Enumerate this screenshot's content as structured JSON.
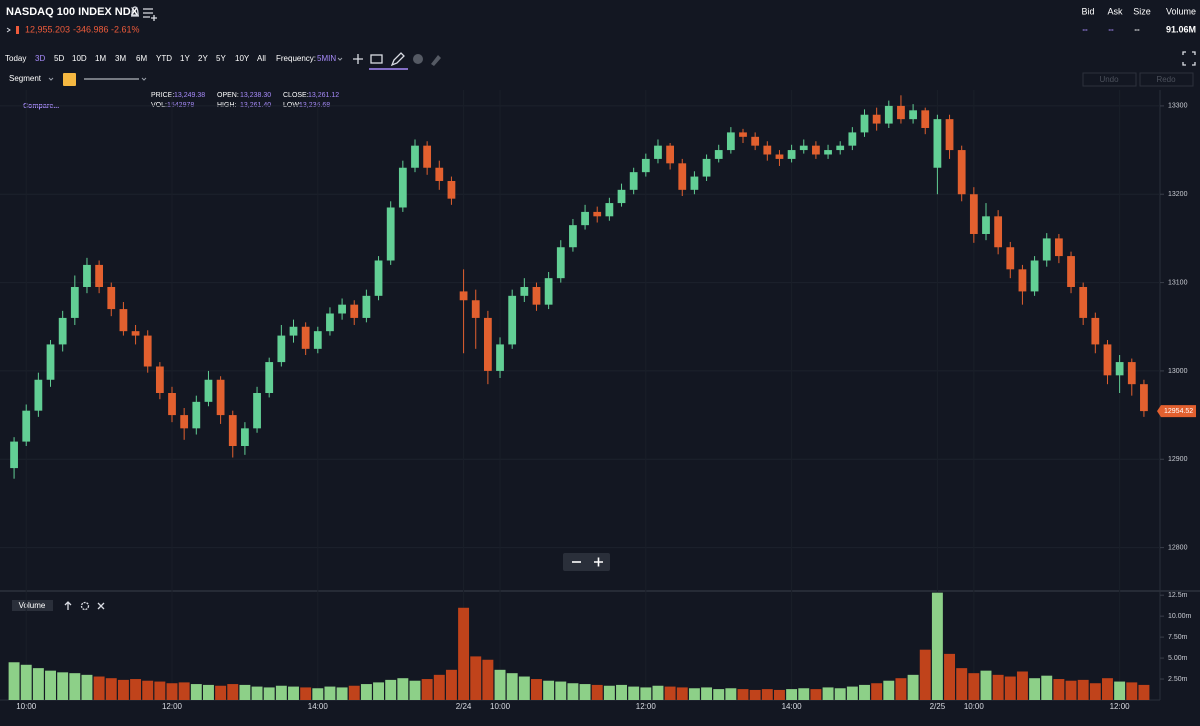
{
  "header": {
    "title": "NASDAQ 100 INDEX NDX",
    "price": "12,955.203",
    "change": "-346.986",
    "change_pct": "-2.61%"
  },
  "quote": {
    "labels": [
      "Bid",
      "Ask",
      "Size",
      "Volume"
    ],
    "values": [
      "--",
      "--",
      "--",
      "91.06M"
    ]
  },
  "toolbar": {
    "ranges": [
      "Today",
      "3D",
      "5D",
      "10D",
      "1M",
      "3M",
      "6M",
      "YTD",
      "1Y",
      "2Y",
      "5Y",
      "10Y",
      "All"
    ],
    "frequency_label": "Frequency:",
    "frequency": "5MIN",
    "segment": "Segment",
    "undo": "Undo",
    "redo": "Redo",
    "compare": "Compare..."
  },
  "info": {
    "price_label": "PRICE:",
    "price": "13,249.38",
    "open_label": "OPEN:",
    "open": "13,238.30",
    "close_label": "CLOSE:",
    "close": "13,261.12",
    "vol_label": "VOL:",
    "vol": 1542978,
    "high_label": "HIGH:",
    "high": "13,261.40",
    "low_label": "LOW:",
    "low": "13,236.68"
  },
  "chart_data": [
    {
      "type": "candlestick",
      "up_color": "#62cf95",
      "down_color": "#e2602f",
      "open": [
        12890,
        12920,
        12955,
        12990,
        13030,
        13060,
        13095,
        13120,
        13095,
        13070,
        13045,
        13040,
        13005,
        12975,
        12950,
        12935,
        12965,
        12990,
        12950,
        12915,
        12935,
        12975,
        13010,
        13040,
        13050,
        13025,
        13045,
        13065,
        13075,
        13060,
        13085,
        13125,
        13185,
        13230,
        13255,
        13230,
        13215,
        13090,
        13080,
        13060,
        13000,
        13030,
        13085,
        13095,
        13075,
        13105,
        13140,
        13165,
        13180,
        13175,
        13190,
        13205,
        13225,
        13240,
        13255,
        13235,
        13205,
        13220,
        13240,
        13250,
        13270,
        13265,
        13255,
        13245,
        13240,
        13250,
        13255,
        13245,
        13250,
        13255,
        13270,
        13290,
        13280,
        13300,
        13285,
        13295,
        13230,
        13285,
        13250,
        13200,
        13155,
        13175,
        13140,
        13115,
        13090,
        13125,
        13150,
        13130,
        13095,
        13060,
        13030,
        12995,
        13010,
        12985
      ],
      "high": [
        12925,
        12962,
        12998,
        13035,
        13068,
        13108,
        13128,
        13125,
        13100,
        13078,
        13052,
        13046,
        13010,
        12982,
        12958,
        12972,
        13000,
        12994,
        12955,
        12942,
        12982,
        13015,
        13052,
        13058,
        13055,
        13050,
        13072,
        13082,
        13080,
        13092,
        13130,
        13192,
        13238,
        13262,
        13260,
        13238,
        13220,
        13115,
        13092,
        13068,
        13038,
        13092,
        13105,
        13100,
        13112,
        13148,
        13172,
        13188,
        13186,
        13196,
        13212,
        13230,
        13246,
        13262,
        13258,
        13240,
        13226,
        13245,
        13256,
        13276,
        13274,
        13270,
        13260,
        13250,
        13256,
        13262,
        13260,
        13256,
        13260,
        13276,
        13296,
        13298,
        13306,
        13312,
        13302,
        13298,
        13290,
        13290,
        13255,
        13208,
        13190,
        13182,
        13146,
        13120,
        13130,
        13156,
        13155,
        13135,
        13100,
        13066,
        13035,
        13018,
        13014,
        12990
      ],
      "low": [
        12878,
        12915,
        12948,
        12982,
        13022,
        13052,
        13088,
        13088,
        13062,
        13040,
        13030,
        12998,
        12968,
        12942,
        12922,
        12928,
        12960,
        12940,
        12902,
        12905,
        12930,
        12970,
        13005,
        13032,
        13018,
        13020,
        13040,
        13058,
        13052,
        13055,
        13080,
        13120,
        13180,
        13225,
        13222,
        13205,
        13188,
        13020,
        13025,
        12985,
        12992,
        13025,
        13078,
        13068,
        13070,
        13100,
        13135,
        13160,
        13168,
        13170,
        13186,
        13200,
        13220,
        13235,
        13228,
        13198,
        13200,
        13215,
        13236,
        13246,
        13258,
        13250,
        13238,
        13232,
        13236,
        13246,
        13240,
        13240,
        13245,
        13250,
        13265,
        13272,
        13275,
        13280,
        13280,
        13268,
        13200,
        13240,
        13192,
        13145,
        13148,
        13132,
        13105,
        13075,
        13085,
        13118,
        13122,
        13088,
        13052,
        13020,
        12985,
        12975,
        12972,
        12948
      ],
      "close": [
        12920,
        12955,
        12990,
        13030,
        13060,
        13095,
        13120,
        13095,
        13070,
        13045,
        13040,
        13005,
        12975,
        12950,
        12935,
        12965,
        12990,
        12950,
        12915,
        12935,
        12975,
        13010,
        13040,
        13050,
        13025,
        13045,
        13065,
        13075,
        13060,
        13085,
        13125,
        13185,
        13230,
        13255,
        13230,
        13215,
        13195,
        13080,
        13060,
        13000,
        13030,
        13085,
        13095,
        13075,
        13105,
        13140,
        13165,
        13180,
        13175,
        13190,
        13205,
        13225,
        13240,
        13255,
        13235,
        13205,
        13220,
        13240,
        13250,
        13270,
        13265,
        13255,
        13245,
        13240,
        13250,
        13255,
        13245,
        13250,
        13255,
        13270,
        13290,
        13280,
        13300,
        13285,
        13295,
        13275,
        13285,
        13250,
        13200,
        13155,
        13175,
        13140,
        13115,
        13090,
        13125,
        13150,
        13130,
        13095,
        13060,
        13030,
        12995,
        13010,
        12985,
        12954.52
      ],
      "ylim": [
        12752,
        13318
      ],
      "yticks": [
        12800,
        12900,
        13000,
        13100,
        13200,
        13300
      ],
      "grid": true
    },
    {
      "type": "bar",
      "title": "Volume",
      "up_color": "#8dd088",
      "down_color": "#c0431b",
      "values": [
        4500000,
        4200000,
        3800000,
        3500000,
        3300000,
        3200000,
        3000000,
        2800000,
        2600000,
        2400000,
        2500000,
        2300000,
        2200000,
        2000000,
        2100000,
        1900000,
        1800000,
        1700000,
        1900000,
        1800000,
        1600000,
        1500000,
        1700000,
        1600000,
        1500000,
        1400000,
        1600000,
        1500000,
        1700000,
        1900000,
        2100000,
        2400000,
        2600000,
        2300000,
        2500000,
        3000000,
        3600000,
        11000000,
        5200000,
        4800000,
        3600000,
        3200000,
        2800000,
        2500000,
        2300000,
        2200000,
        2000000,
        1900000,
        1800000,
        1700000,
        1800000,
        1600000,
        1500000,
        1700000,
        1600000,
        1500000,
        1400000,
        1500000,
        1300000,
        1400000,
        1300000,
        1200000,
        1300000,
        1200000,
        1300000,
        1400000,
        1300000,
        1500000,
        1400000,
        1600000,
        1800000,
        2000000,
        2300000,
        2600000,
        3000000,
        6000000,
        12800000,
        5500000,
        3800000,
        3200000,
        3500000,
        3000000,
        2800000,
        3400000,
        2600000,
        2900000,
        2500000,
        2300000,
        2400000,
        2000000,
        2600000,
        2200000,
        2100000,
        1800000
      ],
      "ylim": [
        0,
        13000000
      ],
      "yticks": [
        {
          "value": 2500000,
          "label": "2.50m"
        },
        {
          "value": 5000000,
          "label": "5.00m"
        },
        {
          "value": 7500000,
          "label": "7.50m"
        },
        {
          "value": 10000000,
          "label": "10.00m"
        },
        {
          "value": 12500000,
          "label": "12.5m"
        }
      ],
      "xticks": [
        {
          "value": 1,
          "label": "10:00"
        },
        {
          "value": 13,
          "label": "12:00"
        },
        {
          "value": 25,
          "label": "14:00"
        },
        {
          "value": 37,
          "label": "2/24"
        },
        {
          "value": 40,
          "label": "10:00"
        },
        {
          "value": 52,
          "label": "12:00"
        },
        {
          "value": 64,
          "label": "14:00"
        },
        {
          "value": 76,
          "label": "2/25"
        },
        {
          "value": 79,
          "label": "10:00"
        },
        {
          "value": 91,
          "label": "12:00"
        }
      ]
    }
  ]
}
